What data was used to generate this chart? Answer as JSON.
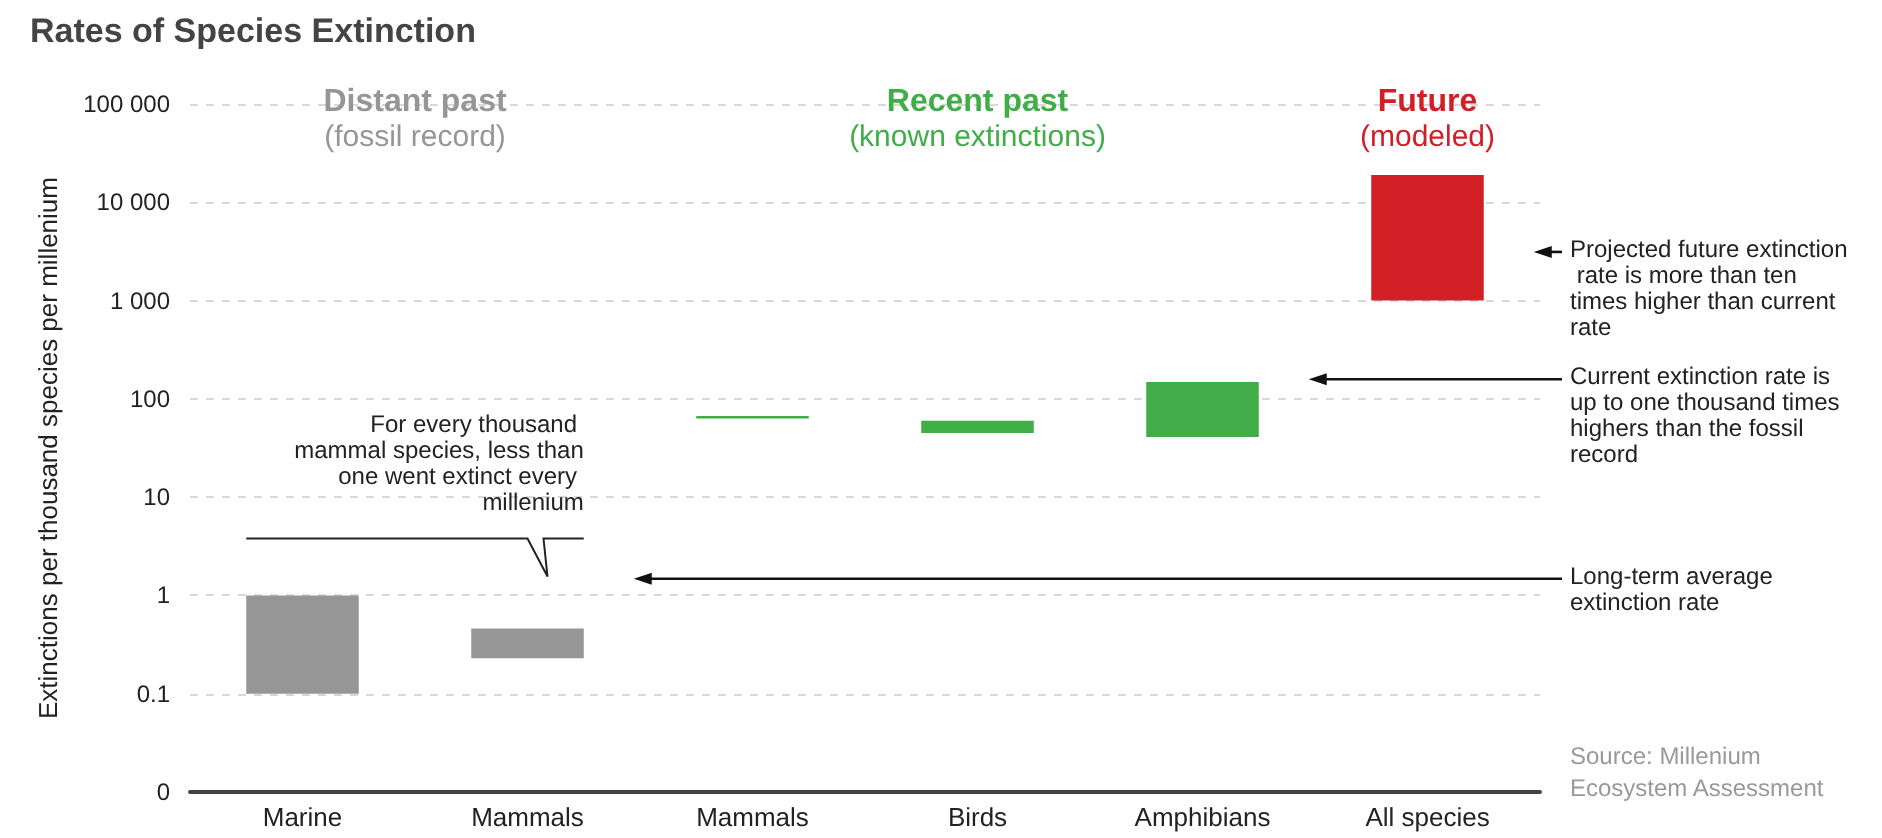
{
  "chart_data": {
    "type": "bar",
    "title": "Rates of Species Extinction",
    "ylabel": "Extinctions per thousand species per millenium",
    "categories": [
      "Marine",
      "Mammals",
      "Mammals",
      "Birds",
      "Amphibians",
      "All species"
    ],
    "base": [
      0.1,
      0.23,
      63,
      45,
      41,
      1000
    ],
    "values": [
      0.9,
      0.23,
      4,
      15,
      107,
      18000
    ],
    "colors": [
      "#969696",
      "#969696",
      "#41ad49",
      "#41ad49",
      "#41ad49",
      "#d21f26"
    ],
    "log": true,
    "ylim": [
      0.01,
      100000
    ],
    "yticks": [
      {
        "value": 0.01,
        "label": "0"
      },
      0.1,
      1,
      10,
      100,
      {
        "value": 1000,
        "label": "1 000"
      },
      {
        "value": 10000,
        "label": "10 000"
      },
      {
        "value": 100000,
        "label": "100 000"
      }
    ],
    "grid": "y",
    "annotations": [
      "Distant past",
      "(fossil record)",
      "Recent past",
      "(known extinctions)",
      "Future",
      "(modeled)",
      "For every thousand mammal species, less than one went extinct every millenium",
      "Projected future extinction rate is more than ten times higher than current rate",
      "Current extinction rate is up to one thousand times highers than the fossil record",
      "Long-term average extinction rate",
      "Source: Millenium Ecosystem Assessment"
    ]
  }
}
